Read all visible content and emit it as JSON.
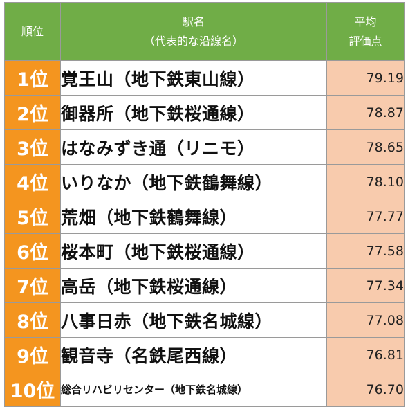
{
  "header": {
    "rank": "順位",
    "station_line1": "駅名",
    "station_line2": "（代表的な沿線名）",
    "score_line1": "平均",
    "score_line2": "評価点"
  },
  "rows": [
    {
      "rank": "1位",
      "station": "覚王山（地下鉄東山線）",
      "score": "79.19"
    },
    {
      "rank": "2位",
      "station": "御器所（地下鉄桜通線）",
      "score": "78.87"
    },
    {
      "rank": "3位",
      "station": "はなみずき通（リニモ）",
      "score": "78.65"
    },
    {
      "rank": "4位",
      "station": "いりなか（地下鉄鶴舞線）",
      "score": "78.10"
    },
    {
      "rank": "5位",
      "station": "荒畑（地下鉄鶴舞線）",
      "score": "77.77"
    },
    {
      "rank": "6位",
      "station": "桜本町（地下鉄桜通線）",
      "score": "77.58"
    },
    {
      "rank": "7位",
      "station": "高岳（地下鉄桜通線）",
      "score": "77.34"
    },
    {
      "rank": "8位",
      "station": "八事日赤（地下鉄名城線）",
      "score": "77.08"
    },
    {
      "rank": "9位",
      "station": "観音寺（名鉄尾西線）",
      "score": "76.81"
    },
    {
      "rank": "10位",
      "station": "総合リハビリセンター（地下鉄名城線）",
      "score": "76.70"
    }
  ],
  "colors": {
    "header_bg": "#70ad47",
    "rank_bg": "#f4951f",
    "score_bg": "#f8cbad"
  }
}
